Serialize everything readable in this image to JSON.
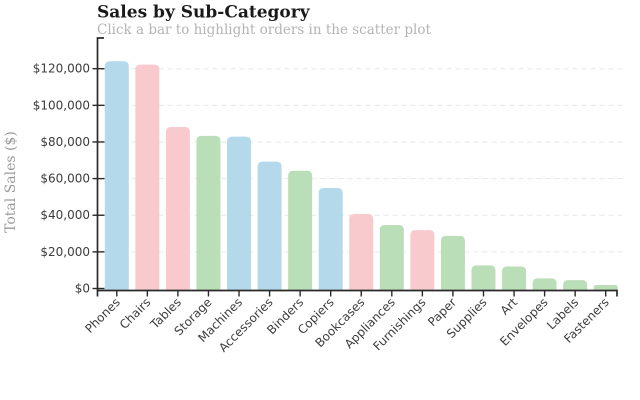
{
  "chart": {
    "title": "Sales by Sub-Category",
    "subtitle": "Click a bar to highlight orders in the scatter plot",
    "y_axis_label": "Total Sales ($)"
  },
  "chart_data": {
    "type": "bar",
    "title": "Sales by Sub-Category",
    "subtitle": "Click a bar to highlight orders in the scatter plot",
    "xlabel": "",
    "ylabel": "Total Sales ($)",
    "categories": [
      "Phones",
      "Chairs",
      "Tables",
      "Storage",
      "Machines",
      "Accessories",
      "Binders",
      "Copiers",
      "Bookcases",
      "Appliances",
      "Furnishings",
      "Paper",
      "Supplies",
      "Art",
      "Envelopes",
      "Labels",
      "Fasteners"
    ],
    "values": [
      124100,
      122200,
      88200,
      83300,
      82900,
      69300,
      64300,
      54900,
      40700,
      34700,
      31900,
      28700,
      12600,
      12000,
      5500,
      4600,
      1900
    ],
    "bar_colors": [
      "#b4d9ea",
      "#f8cacd",
      "#f8cacd",
      "#badeb8",
      "#b4d9ea",
      "#b4d9ea",
      "#badeb8",
      "#b4d9ea",
      "#f8cacd",
      "#badeb8",
      "#f8cacd",
      "#badeb8",
      "#badeb8",
      "#badeb8",
      "#badeb8",
      "#badeb8",
      "#badeb8"
    ],
    "palette": {
      "blue": "#b4d9ea",
      "pink": "#f8cacd",
      "green": "#badeb8"
    },
    "ylim": [
      0,
      137000
    ],
    "yticks": [
      0,
      20000,
      40000,
      60000,
      80000,
      100000,
      120000
    ],
    "ytick_prefix": "$",
    "grid": "horizontal-dashed",
    "legend": "none",
    "bar_corner_radius": 5,
    "colors": {
      "axis": "#2a2a2a",
      "grid": "#e7e7e7",
      "tick_text": "#3d3d3d",
      "title": "#1a1a1a",
      "subtitle": "#b4b4b4",
      "ylabel": "#9b9b9b",
      "background": "#ffffff"
    }
  }
}
